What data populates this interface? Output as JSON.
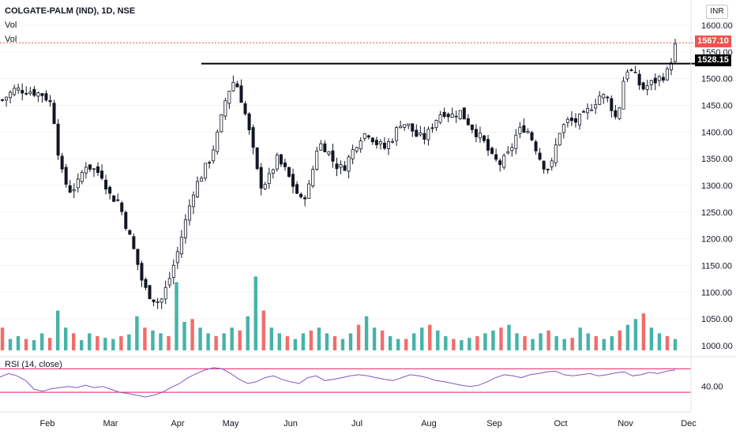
{
  "header": {
    "title": "COLGATE-PALM (IND), 1D, NSE",
    "vol_label_1": "Vol",
    "vol_label_2": "Vol"
  },
  "currency": "INR",
  "price_tags": {
    "last": "1567.10",
    "horizontal_line": "1528.15"
  },
  "rsi": {
    "label": "RSI (14, close)",
    "tick": "40.00",
    "upper_band": 70,
    "lower_band": 30
  },
  "colors": {
    "up": "#26a69a",
    "down": "#ef5350",
    "vol_up": "#26a69a",
    "vol_down": "#ef5350",
    "rsi_line": "#7e57c2",
    "rsi_band": "#e91e63",
    "last_price_line": "#ef5350"
  },
  "chart_data": {
    "type": "candlestick",
    "y_axis": {
      "ticks": [
        "1600.00",
        "1550.00",
        "1500.00",
        "1450.00",
        "1400.00",
        "1350.00",
        "1300.00",
        "1250.00",
        "1200.00",
        "1150.00",
        "1100.00",
        "1050.00",
        "1000.00"
      ],
      "range": [
        990,
        1610
      ]
    },
    "x_axis": {
      "ticks": [
        "Feb",
        "Mar",
        "Apr",
        "May",
        "Jun",
        "Jul",
        "Aug",
        "Sep",
        "Oct",
        "Nov",
        "Dec"
      ]
    },
    "horizontal_line": 1528.15,
    "last_price": 1567.1,
    "close_path": [
      [
        0,
        1460
      ],
      [
        3,
        1480
      ],
      [
        6,
        1478
      ],
      [
        10,
        1470
      ],
      [
        12,
        1450
      ],
      [
        14,
        1330
      ],
      [
        16,
        1290
      ],
      [
        18,
        1300
      ],
      [
        20,
        1340
      ],
      [
        22,
        1330
      ],
      [
        24,
        1320
      ],
      [
        26,
        1280
      ],
      [
        28,
        1270
      ],
      [
        30,
        1220
      ],
      [
        32,
        1170
      ],
      [
        34,
        1110
      ],
      [
        36,
        1090
      ],
      [
        38,
        1080
      ],
      [
        40,
        1120
      ],
      [
        42,
        1170
      ],
      [
        44,
        1230
      ],
      [
        46,
        1290
      ],
      [
        48,
        1320
      ],
      [
        50,
        1350
      ],
      [
        52,
        1400
      ],
      [
        54,
        1470
      ],
      [
        56,
        1500
      ],
      [
        58,
        1450
      ],
      [
        60,
        1380
      ],
      [
        62,
        1300
      ],
      [
        64,
        1310
      ],
      [
        66,
        1350
      ],
      [
        68,
        1330
      ],
      [
        70,
        1300
      ],
      [
        72,
        1270
      ],
      [
        74,
        1300
      ],
      [
        76,
        1380
      ],
      [
        78,
        1370
      ],
      [
        80,
        1340
      ],
      [
        82,
        1330
      ],
      [
        84,
        1360
      ],
      [
        86,
        1390
      ],
      [
        88,
        1400
      ],
      [
        90,
        1380
      ],
      [
        92,
        1370
      ],
      [
        94,
        1390
      ],
      [
        96,
        1420
      ],
      [
        98,
        1410
      ],
      [
        100,
        1390
      ],
      [
        102,
        1390
      ],
      [
        104,
        1420
      ],
      [
        106,
        1440
      ],
      [
        108,
        1430
      ],
      [
        110,
        1440
      ],
      [
        112,
        1420
      ],
      [
        114,
        1400
      ],
      [
        116,
        1380
      ],
      [
        118,
        1350
      ],
      [
        120,
        1340
      ],
      [
        122,
        1360
      ],
      [
        124,
        1400
      ],
      [
        126,
        1410
      ],
      [
        128,
        1380
      ],
      [
        130,
        1340
      ],
      [
        132,
        1330
      ],
      [
        134,
        1400
      ],
      [
        136,
        1420
      ],
      [
        138,
        1420
      ],
      [
        140,
        1430
      ],
      [
        142,
        1450
      ],
      [
        144,
        1470
      ],
      [
        146,
        1460
      ],
      [
        148,
        1420
      ],
      [
        150,
        1520
      ],
      [
        152,
        1510
      ],
      [
        154,
        1480
      ],
      [
        156,
        1490
      ],
      [
        158,
        1500
      ],
      [
        160,
        1510
      ],
      [
        162,
        1560
      ]
    ],
    "volume_series": [
      40,
      20,
      25,
      20,
      18,
      30,
      22,
      70,
      40,
      30,
      18,
      30,
      25,
      22,
      20,
      25,
      28,
      60,
      40,
      35,
      30,
      25,
      120,
      50,
      55,
      40,
      30,
      25,
      30,
      40,
      35,
      60,
      130,
      70,
      40,
      30,
      25,
      20,
      30,
      35,
      40,
      30,
      25,
      20,
      30,
      45,
      60,
      40,
      35,
      25,
      20,
      20,
      30,
      40,
      45,
      35,
      25,
      20,
      18,
      22,
      25,
      30,
      35,
      40,
      45,
      30,
      25,
      20,
      30,
      35,
      25,
      20,
      22,
      40,
      30,
      25,
      20,
      25,
      35,
      45,
      55,
      65,
      40,
      30,
      25,
      20
    ],
    "rsi_series": [
      56,
      62,
      58,
      50,
      35,
      32,
      36,
      38,
      40,
      38,
      42,
      38,
      40,
      35,
      30,
      28,
      25,
      22,
      25,
      30,
      38,
      45,
      55,
      62,
      68,
      72,
      70,
      62,
      52,
      45,
      48,
      55,
      58,
      52,
      48,
      45,
      55,
      58,
      50,
      52,
      55,
      58,
      60,
      58,
      55,
      52,
      50,
      55,
      60,
      58,
      55,
      50,
      48,
      45,
      42,
      40,
      42,
      48,
      55,
      60,
      58,
      55,
      60,
      62,
      65,
      66,
      60,
      58,
      60,
      62,
      58,
      60,
      63,
      65,
      58,
      60,
      64,
      62,
      66,
      68
    ]
  }
}
